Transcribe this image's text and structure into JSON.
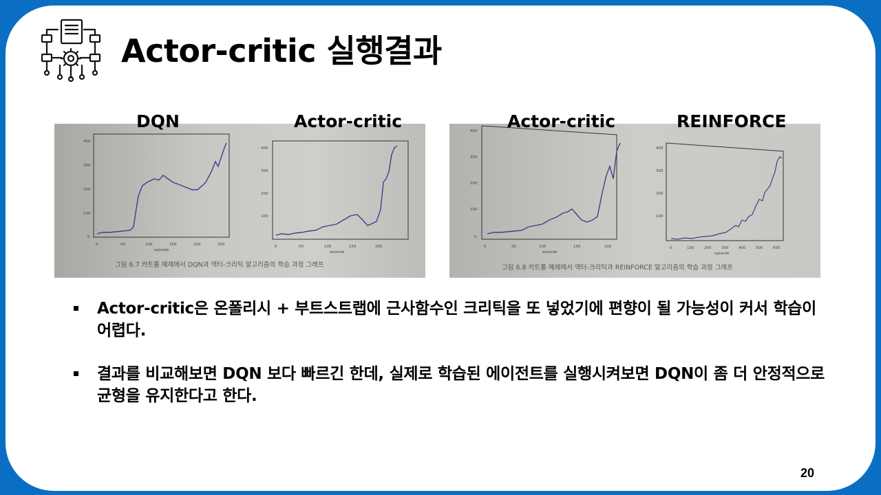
{
  "title": "Actor-critic 실행결과",
  "labels": {
    "dqn": "DQN",
    "ac1": "Actor-critic",
    "ac2": "Actor-critic",
    "reinforce": "REINFORCE"
  },
  "captions": {
    "left": "그림 6.7 카트폴 예제에서 DQN과 액터-크리틱 알고리즘의 학습 과정 그래프",
    "right": "그림 6.8 카트폴 예제에서 액터-크리틱과 REINFORCE 알고리즘의 학습 과정 그래프"
  },
  "bullets": [
    "Actor-critic은 온폴리시 + 부트스트랩에 근사함수인 크리틱을 또 넣었기에 편향이 될 가능성이 커서 학습이 어렵다.",
    "결과를 비교해보면 DQN 보다 빠르긴 한데, 실제로 학습된 에이전트를 실행시켜보면 DQN이 좀 더 안정적으로 균형을 유지한다고 한다."
  ],
  "page_number": "20",
  "colors": {
    "frame": "#0a6fc2",
    "curve": "#3b3f8c"
  }
}
